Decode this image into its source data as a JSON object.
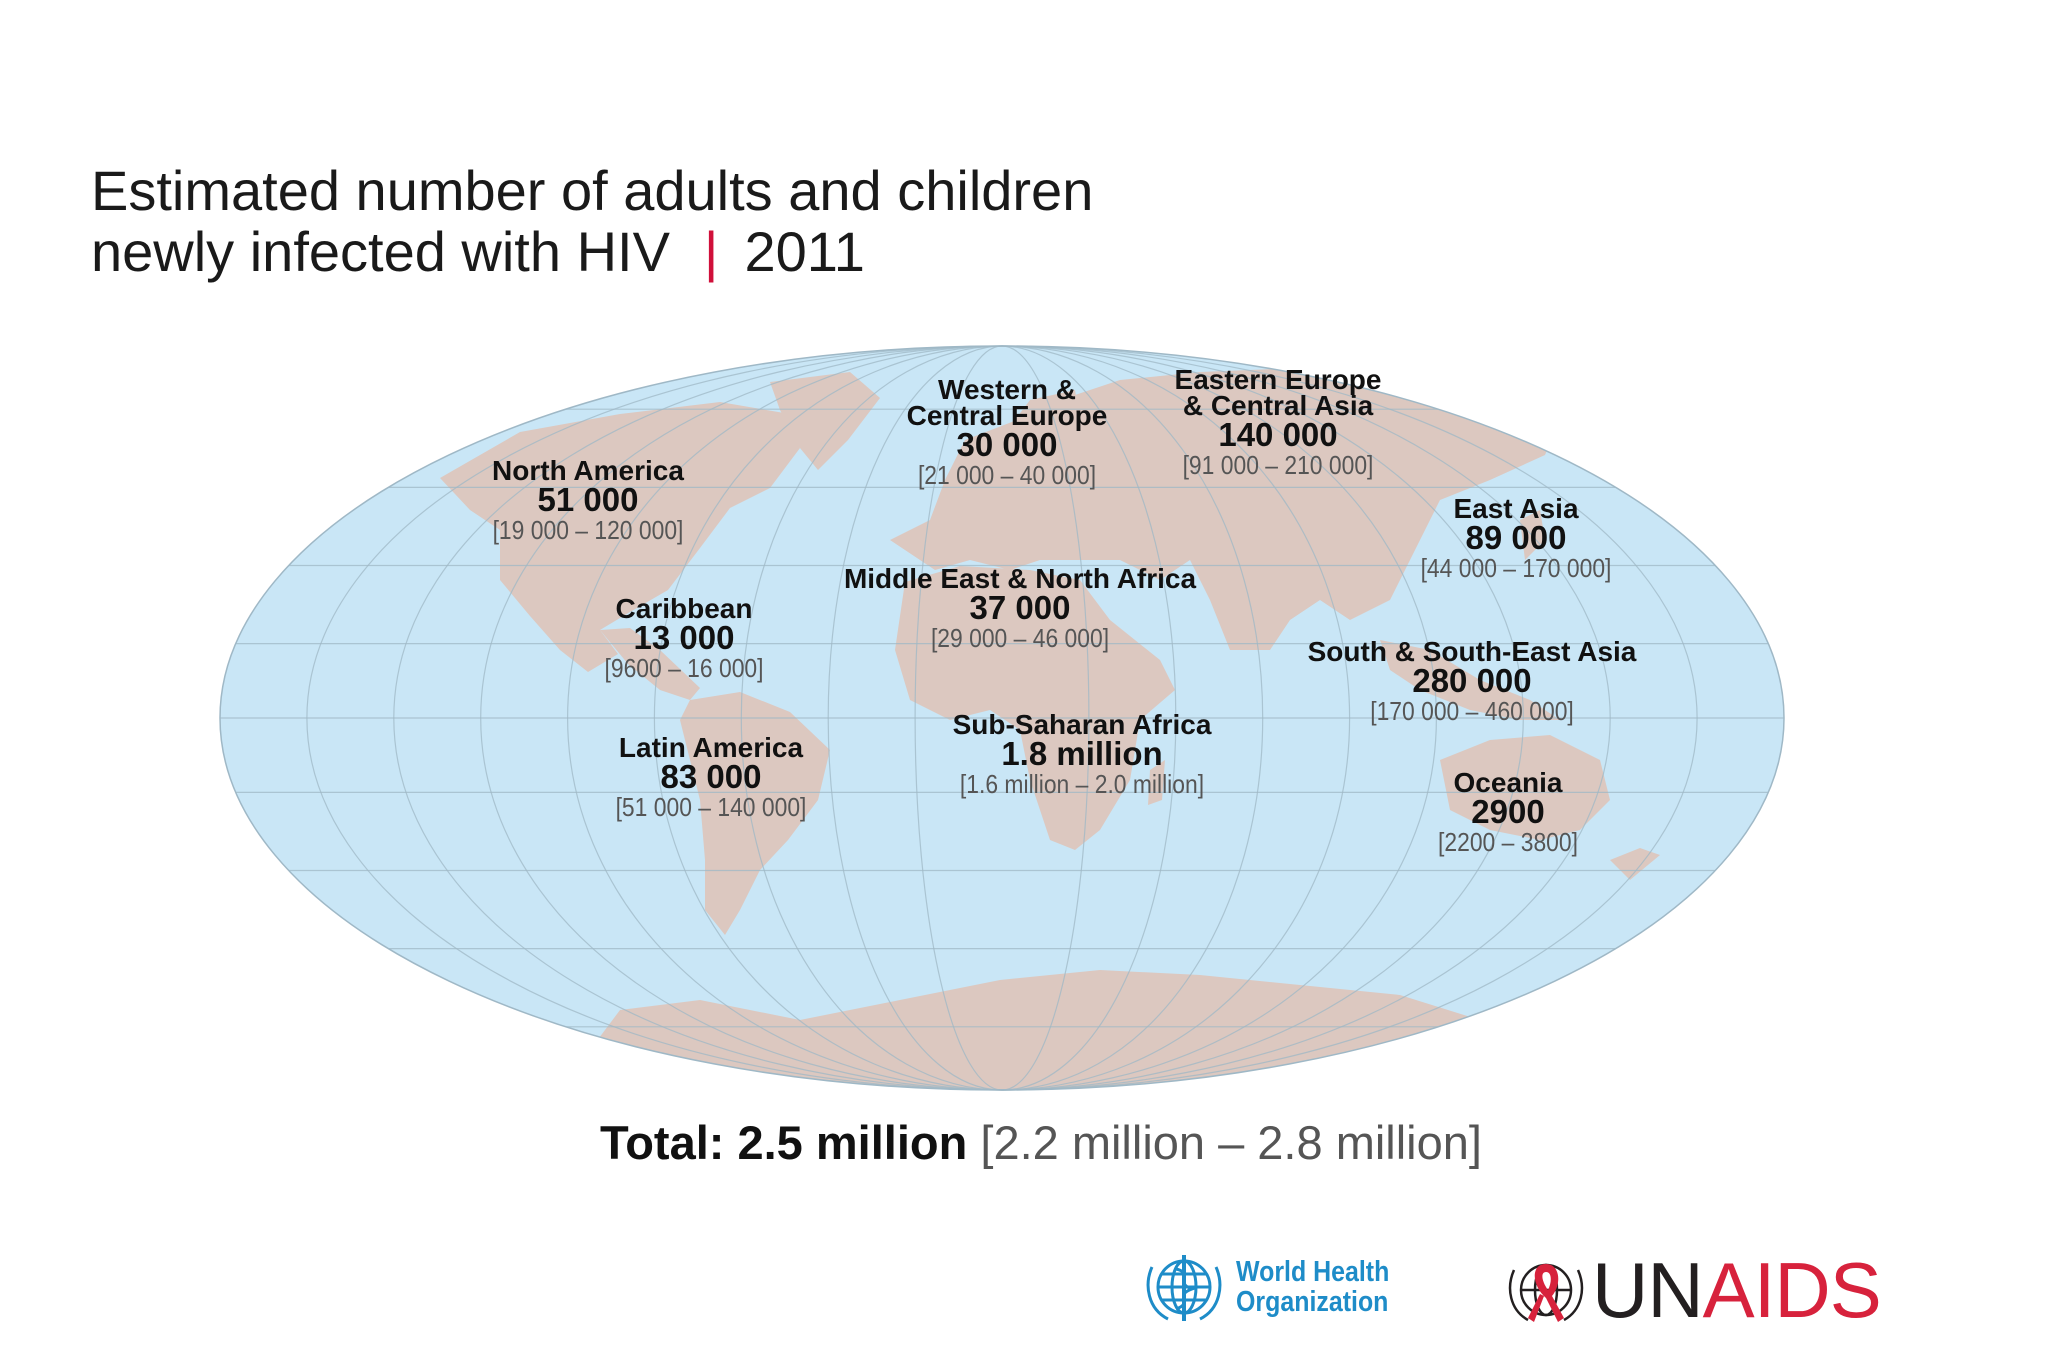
{
  "title": {
    "line1": "Estimated number of adults and children",
    "line2": "newly infected with HIV",
    "separator": "|",
    "year": "2011"
  },
  "colors": {
    "ocean": "#c9e6f6",
    "land": "#dcc8c0",
    "grid": "#9fb8c6",
    "title_separator": "#d0103a",
    "who_blue": "#1e8cc8",
    "unaids_red": "#d7223c"
  },
  "regions": [
    {
      "id": "north-america",
      "name": [
        "North America"
      ],
      "value": "51 000",
      "range": "[19 000 – 120 000]"
    },
    {
      "id": "caribbean",
      "name": [
        "Caribbean"
      ],
      "value": "13 000",
      "range": "[9600 – 16 000]"
    },
    {
      "id": "latin-america",
      "name": [
        "Latin America"
      ],
      "value": "83 000",
      "range": "[51 000 – 140 000]"
    },
    {
      "id": "western-central-europe",
      "name": [
        "Western &",
        "Central Europe"
      ],
      "value": "30 000",
      "range": "[21 000 – 40 000]"
    },
    {
      "id": "eastern-europe-central-asia",
      "name": [
        "Eastern Europe",
        "& Central Asia"
      ],
      "value": "140 000",
      "range": "[91 000 – 210 000]"
    },
    {
      "id": "middle-east-north-africa",
      "name": [
        "Middle East & North Africa"
      ],
      "value": "37 000",
      "range": "[29 000 – 46 000]"
    },
    {
      "id": "sub-saharan-africa",
      "name": [
        "Sub-Saharan Africa"
      ],
      "value": "1.8 million",
      "range": "[1.6 million – 2.0 million]"
    },
    {
      "id": "east-asia",
      "name": [
        "East Asia"
      ],
      "value": "89 000",
      "range": "[44 000 – 170 000]"
    },
    {
      "id": "south-south-east-asia",
      "name": [
        "South & South-East Asia"
      ],
      "value": "280 000",
      "range": "[170 000 – 460 000]"
    },
    {
      "id": "oceania",
      "name": [
        "Oceania"
      ],
      "value": "2900",
      "range": "[2200 – 3800]"
    }
  ],
  "total": {
    "label": "Total: 2.5 million",
    "range": "[2.2 million – 2.8 million]"
  },
  "logos": {
    "who": {
      "line1": "World Health",
      "line2": "Organization"
    },
    "unaids": {
      "un": "UN",
      "aids": "AIDS"
    }
  }
}
